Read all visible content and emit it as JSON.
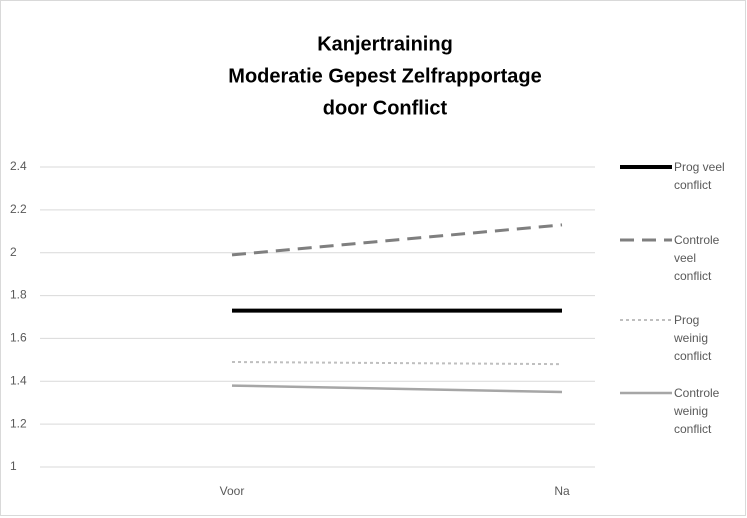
{
  "chart_data": {
    "type": "line",
    "title": [
      "Kanjertraining",
      "Moderatie Gepest Zelfrapportage",
      "door Conflict"
    ],
    "categories": [
      "Voor",
      "Na"
    ],
    "series": [
      {
        "name": "Prog veel conflict",
        "color": "#000000",
        "style": "solid",
        "width": 4,
        "values": [
          1.73,
          1.73
        ]
      },
      {
        "name": "Controle veel conflict",
        "color": "#7f7f7f",
        "style": "dashed",
        "width": 3,
        "values": [
          1.99,
          2.13
        ]
      },
      {
        "name": "Prog weinig conflict",
        "color": "#bfbfbf",
        "style": "dotted",
        "width": 2,
        "values": [
          1.49,
          1.48
        ]
      },
      {
        "name": "Controle weinig conflict",
        "color": "#a6a6a6",
        "style": "solid",
        "width": 2.5,
        "values": [
          1.38,
          1.35
        ]
      }
    ],
    "ylim": [
      1,
      2.4
    ],
    "yticks": [
      1,
      1.2,
      1.4,
      1.6,
      1.8,
      2,
      2.2,
      2.4
    ],
    "grid": true,
    "legend": "right"
  }
}
